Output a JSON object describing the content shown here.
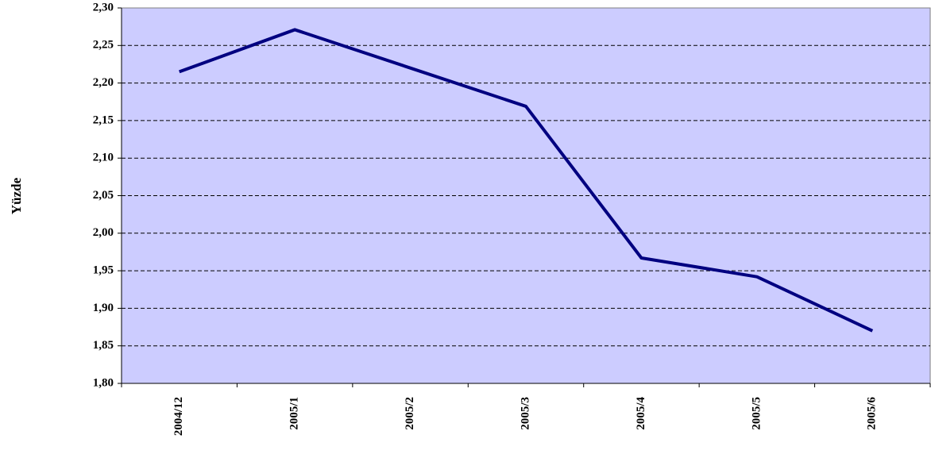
{
  "chart_data": {
    "type": "line",
    "y_label": "Yüzde",
    "categories": [
      "2004/12",
      "2005/1",
      "2005/2",
      "2005/3",
      "2005/4",
      "2005/5",
      "2005/6"
    ],
    "series": [
      {
        "name": "Yüzde",
        "color": "#000080",
        "values": [
          2.215,
          2.271,
          2.22,
          2.169,
          1.967,
          1.942,
          1.87
        ]
      }
    ],
    "ylim": [
      1.8,
      2.3
    ],
    "yticks": [
      {
        "value": 1.8,
        "label": "1,80"
      },
      {
        "value": 1.85,
        "label": "1,85"
      },
      {
        "value": 1.9,
        "label": "1,90"
      },
      {
        "value": 1.95,
        "label": "1,95"
      },
      {
        "value": 2.0,
        "label": "2,00"
      },
      {
        "value": 2.05,
        "label": "2,05"
      },
      {
        "value": 2.1,
        "label": "2,10"
      },
      {
        "value": 2.15,
        "label": "2,15"
      },
      {
        "value": 2.2,
        "label": "2,20"
      },
      {
        "value": 2.25,
        "label": "2,25"
      },
      {
        "value": 2.3,
        "label": "2,30"
      }
    ],
    "grid": true,
    "background": "#ccccff"
  }
}
